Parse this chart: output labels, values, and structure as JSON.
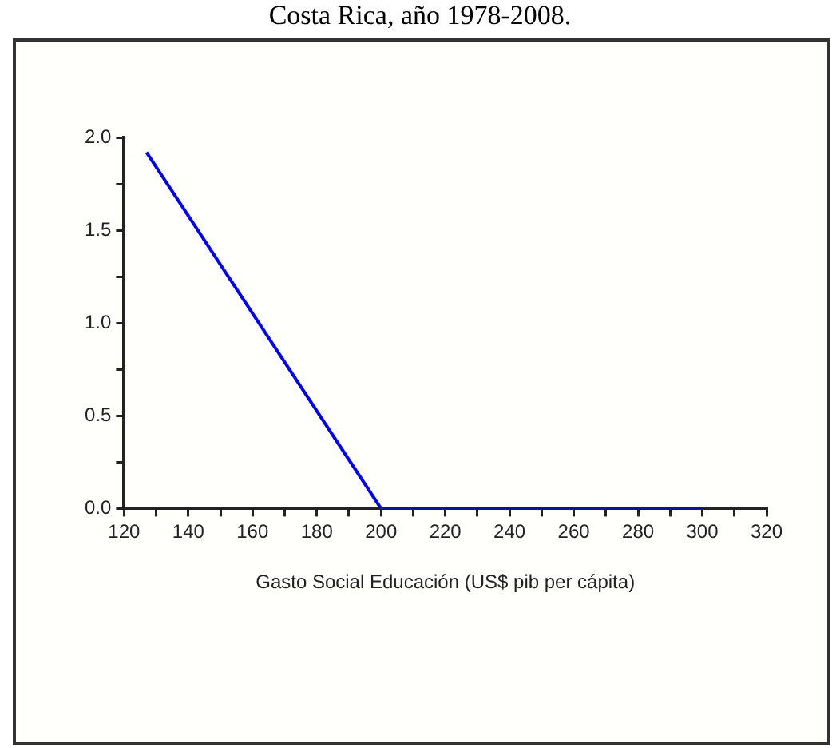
{
  "chart_data": {
    "type": "line",
    "title": "Costa Rica, año 1978-2008.",
    "xlabel": "Gasto Social Educación (US$ pib per cápita)",
    "x": [
      127,
      200,
      300
    ],
    "series": [
      {
        "color": "#0000ff",
        "values": [
          1.92,
          0,
          0
        ]
      }
    ],
    "xlim": [
      120,
      320
    ],
    "xticks": [
      120,
      {
        "value": 130,
        "label": null
      },
      140,
      {
        "value": 150,
        "label": null
      },
      160,
      {
        "value": 170,
        "label": null
      },
      180,
      {
        "value": 190,
        "label": null
      },
      200,
      {
        "value": 210,
        "label": null
      },
      220,
      {
        "value": 230,
        "label": null
      },
      240,
      {
        "value": 250,
        "label": null
      },
      260,
      {
        "value": 270,
        "label": null
      },
      280,
      {
        "value": 290,
        "label": null
      },
      300,
      {
        "value": 310,
        "label": null
      },
      320
    ],
    "ylim": [
      0,
      2
    ],
    "yticks": [
      "0.0",
      {
        "value": 0.25,
        "label": null
      },
      {
        "value": 0.5,
        "label": "0.5"
      },
      {
        "value": 0.75,
        "label": null
      },
      {
        "value": 1,
        "label": "1.0"
      },
      {
        "value": 1.25,
        "label": null
      },
      {
        "value": 1.5,
        "label": "1.5"
      },
      {
        "value": 1.75,
        "label": null
      },
      {
        "value": 2,
        "label": "2.0"
      }
    ],
    "grid": false,
    "legend": false,
    "marker": "none",
    "line_style": "solid"
  }
}
